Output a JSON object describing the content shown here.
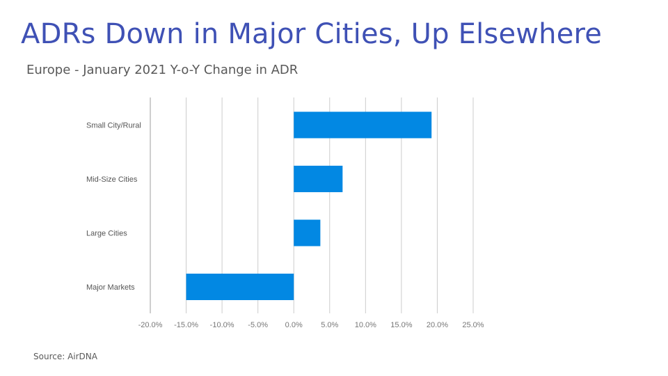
{
  "slide": {
    "title": "ADRs Down in Major Cities, Up Elsewhere",
    "subtitle": "Europe - January 2021 Y-o-Y Change in ADR",
    "source": "Source: AirDNA"
  },
  "chart_data": {
    "type": "bar",
    "orientation": "horizontal",
    "title": "",
    "xlabel": "",
    "ylabel": "",
    "categories": [
      "Small City/Rural",
      "Mid-Size Cities",
      "Large Cities",
      "Major Markets"
    ],
    "values": [
      19.2,
      6.8,
      3.7,
      -15.0
    ],
    "unit": "%",
    "xlim": [
      -20,
      25
    ],
    "xticks": [
      -20,
      -15,
      -10,
      -5,
      0,
      5,
      10,
      15,
      20,
      25
    ],
    "xtick_labels": [
      "-20.0%",
      "-15.0%",
      "-10.0%",
      "-5.0%",
      "0.0%",
      "5.0%",
      "10.0%",
      "15.0%",
      "20.0%",
      "25.0%"
    ],
    "grid": "vertical",
    "legend": "none",
    "bar_color": "#0288e3",
    "grid_color": "#cccccc"
  }
}
